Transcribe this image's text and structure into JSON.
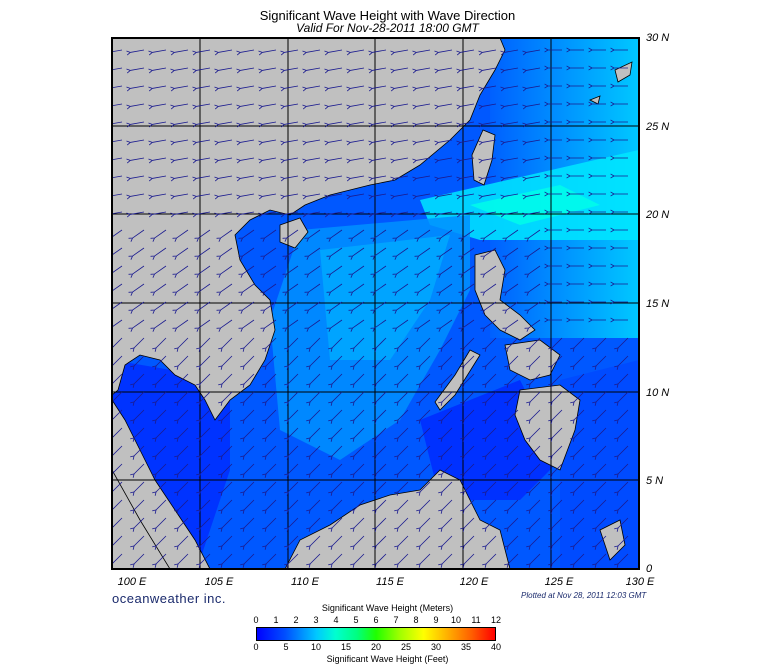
{
  "title": "Significant Wave Height with Wave Direction",
  "subtitle": "Valid For Nov-28-2011 18:00 GMT",
  "lat_labels": [
    "30 N",
    "25 N",
    "20 N",
    "15 N",
    "10 N",
    "5 N",
    "0"
  ],
  "lon_labels": [
    "100 E",
    "105 E",
    "110 E",
    "115 E",
    "120 E",
    "125 E",
    "130 E"
  ],
  "brand": "oceanweather inc.",
  "plotted_at": "Plotted at Nov 28, 2011 12:03 GMT",
  "legend": {
    "meters_label": "Significant Wave Height (Meters)",
    "feet_label": "Significant Wave Height (Feet)",
    "meters_ticks": [
      "0",
      "1",
      "2",
      "3",
      "4",
      "5",
      "6",
      "7",
      "8",
      "9",
      "10",
      "11",
      "12"
    ],
    "feet_ticks": [
      "0",
      "5",
      "10",
      "15",
      "20",
      "25",
      "30",
      "35",
      "40"
    ]
  },
  "colors": {
    "land": "#c0c0c0",
    "deep_blue": "#0000ff",
    "mid_blue": "#0050ff",
    "light_blue": "#00c8ff",
    "cyan": "#00ffd0",
    "arrow": "#1b1b8f"
  }
}
